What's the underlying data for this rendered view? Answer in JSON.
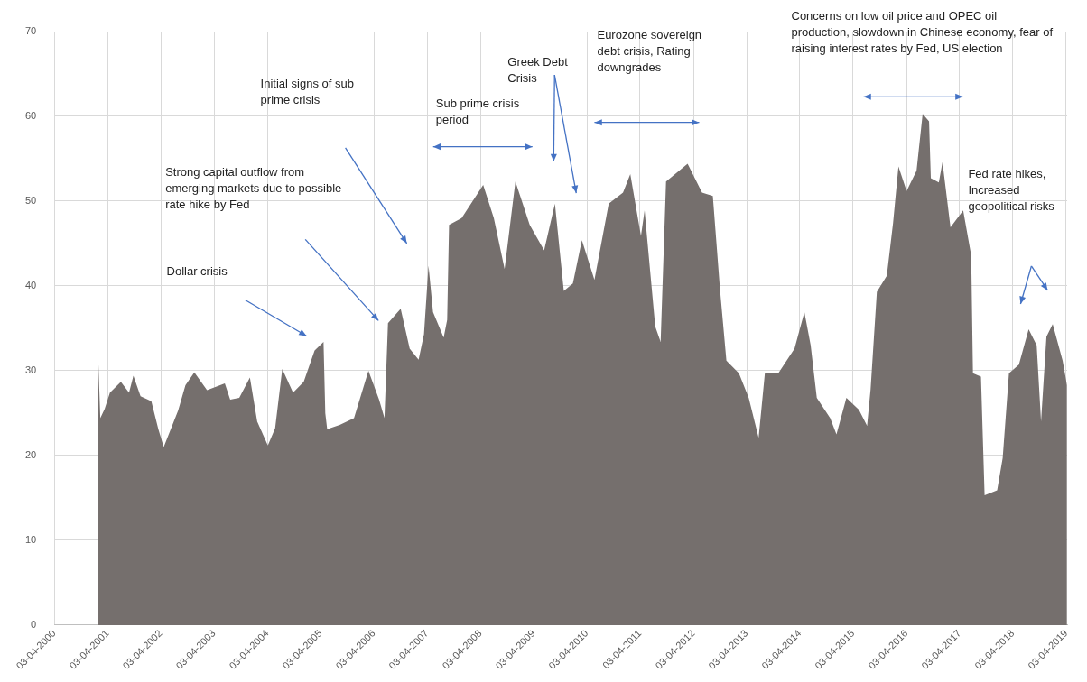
{
  "chart_data": {
    "type": "area",
    "color": "#756f6d",
    "grid": true,
    "legend": false,
    "x": [
      "2001-01-30",
      "2001-02-12",
      "2001-03-14",
      "2001-04-19",
      "2001-07-03",
      "2001-08-28",
      "2001-09-27",
      "2001-11-15",
      "2002-01-28",
      "2002-03-17",
      "2002-04-23",
      "2002-07-31",
      "2002-09-19",
      "2002-11-19",
      "2003-02-14",
      "2003-06-16",
      "2003-07-23",
      "2003-09-23",
      "2003-12-05",
      "2004-01-24",
      "2004-04-06",
      "2004-05-26",
      "2004-07-14",
      "2004-09-26",
      "2004-12-08",
      "2005-02-21",
      "2005-04-23",
      "2005-05-05",
      "2005-05-18",
      "2005-08-12",
      "2005-11-18",
      "2006-02-25",
      "2006-05-09",
      "2006-06-15",
      "2006-07-09",
      "2006-10-04",
      "2006-12-05",
      "2007-02-04",
      "2007-03-13",
      "2007-04-13",
      "2007-05-14",
      "2007-07-26",
      "2007-08-19",
      "2007-09-01",
      "2007-11-26",
      "2008-04-22",
      "2008-07-04",
      "2008-09-16",
      "2008-11-29",
      "2009-03-07",
      "2009-06-14",
      "2009-08-27",
      "2009-10-27",
      "2009-12-28",
      "2010-02-28",
      "2010-05-25",
      "2010-08-31",
      "2010-12-07",
      "2011-01-26",
      "2011-04-09",
      "2011-05-04",
      "2011-07-16",
      "2011-08-22",
      "2011-09-28",
      "2012-02-23",
      "2012-06-01",
      "2012-08-14",
      "2012-10-03",
      "2012-11-15",
      "2013-02-09",
      "2013-04-17",
      "2013-06-24",
      "2013-08-06",
      "2013-11-06",
      "2014-02-25",
      "2014-05-04",
      "2014-06-16",
      "2014-07-28",
      "2014-10-28",
      "2014-12-10",
      "2015-02-16",
      "2015-05-13",
      "2015-07-08",
      "2015-08-01",
      "2015-09-13",
      "2015-11-20",
      "2016-01-02",
      "2016-02-08",
      "2016-04-04",
      "2016-06-11",
      "2016-07-23",
      "2016-09-05",
      "2016-09-17",
      "2016-11-11",
      "2016-12-06",
      "2017-01-30",
      "2017-04-27",
      "2017-06-21",
      "2017-07-03",
      "2017-08-27",
      "2017-09-21",
      "2017-12-16",
      "2018-01-23",
      "2018-03-07",
      "2018-05-14",
      "2018-07-20",
      "2018-09-13",
      "2018-10-13",
      "2018-11-19",
      "2019-01-01",
      "2019-03-10",
      "2019-04-09"
    ],
    "values": [
      30.8,
      24.4,
      25.5,
      27.4,
      28.7,
      27.4,
      29.4,
      27.0,
      26.4,
      23.1,
      21.0,
      25.3,
      28.3,
      29.8,
      27.7,
      28.5,
      26.6,
      26.8,
      29.2,
      24.0,
      21.2,
      23.2,
      30.2,
      27.4,
      28.7,
      32.4,
      33.4,
      25.0,
      23.1,
      23.6,
      24.4,
      30.0,
      26.6,
      24.4,
      35.6,
      37.3,
      32.6,
      31.3,
      34.3,
      42.4,
      36.9,
      33.9,
      36.0,
      47.2,
      48.0,
      51.9,
      48.0,
      42.0,
      52.3,
      47.2,
      44.2,
      49.7,
      39.4,
      40.3,
      45.4,
      40.7,
      49.7,
      51.0,
      53.2,
      45.9,
      48.9,
      35.2,
      33.4,
      52.3,
      54.4,
      51.0,
      50.6,
      39.4,
      31.2,
      29.7,
      26.8,
      22.1,
      29.7,
      29.7,
      32.6,
      36.9,
      33.0,
      26.8,
      24.4,
      22.5,
      26.8,
      25.4,
      23.5,
      27.8,
      39.3,
      41.2,
      47.4,
      54.1,
      51.2,
      53.6,
      60.3,
      59.4,
      52.7,
      52.2,
      54.6,
      46.9,
      48.9,
      43.6,
      29.7,
      29.3,
      15.3,
      15.9,
      19.7,
      29.7,
      30.7,
      34.9,
      33.0,
      24.0,
      34.0,
      35.5,
      31.2,
      28.3
    ],
    "xlim": [
      "2000-04-03",
      "2019-04-10"
    ],
    "xticks": [
      {
        "value": "2000-04-03",
        "label": "03-04-2000"
      },
      {
        "value": "2001-04-03",
        "label": "03-04-2001"
      },
      {
        "value": "2002-04-03",
        "label": "03-04-2002"
      },
      {
        "value": "2003-04-03",
        "label": "03-04-2003"
      },
      {
        "value": "2004-04-03",
        "label": "03-04-2004"
      },
      {
        "value": "2005-04-03",
        "label": "03-04-2005"
      },
      {
        "value": "2006-04-03",
        "label": "03-04-2006"
      },
      {
        "value": "2007-04-03",
        "label": "03-04-2007"
      },
      {
        "value": "2008-04-03",
        "label": "03-04-2008"
      },
      {
        "value": "2009-04-03",
        "label": "03-04-2009"
      },
      {
        "value": "2010-04-03",
        "label": "03-04-2010"
      },
      {
        "value": "2011-04-03",
        "label": "03-04-2011"
      },
      {
        "value": "2012-04-03",
        "label": "03-04-2012"
      },
      {
        "value": "2013-04-03",
        "label": "03-04-2013"
      },
      {
        "value": "2014-04-03",
        "label": "03-04-2014"
      },
      {
        "value": "2015-04-03",
        "label": "03-04-2015"
      },
      {
        "value": "2016-04-03",
        "label": "03-04-2016"
      },
      {
        "value": "2017-04-03",
        "label": "03-04-2017"
      },
      {
        "value": "2018-04-03",
        "label": "03-04-2018"
      },
      {
        "value": "2019-04-03",
        "label": "03-04-2019"
      }
    ],
    "ylim": [
      0,
      70
    ],
    "yticks": [
      0,
      10,
      20,
      30,
      40,
      50,
      60,
      70
    ],
    "annotations": [
      "Dollar crisis",
      "Strong capital outflow from emerging markets due to possible rate hike by Fed",
      "Initial signs of sub prime crisis",
      "Sub prime crisis period",
      "Greek Debt Crisis",
      "Eurozone sovereign debt crisis, Rating downgrades",
      "Concerns on low oil price and OPEC oil production, slowdown in Chinese economy, fear of raising interest rates by Fed, US election",
      "Fed rate hikes, Increased geopolitical risks"
    ]
  }
}
